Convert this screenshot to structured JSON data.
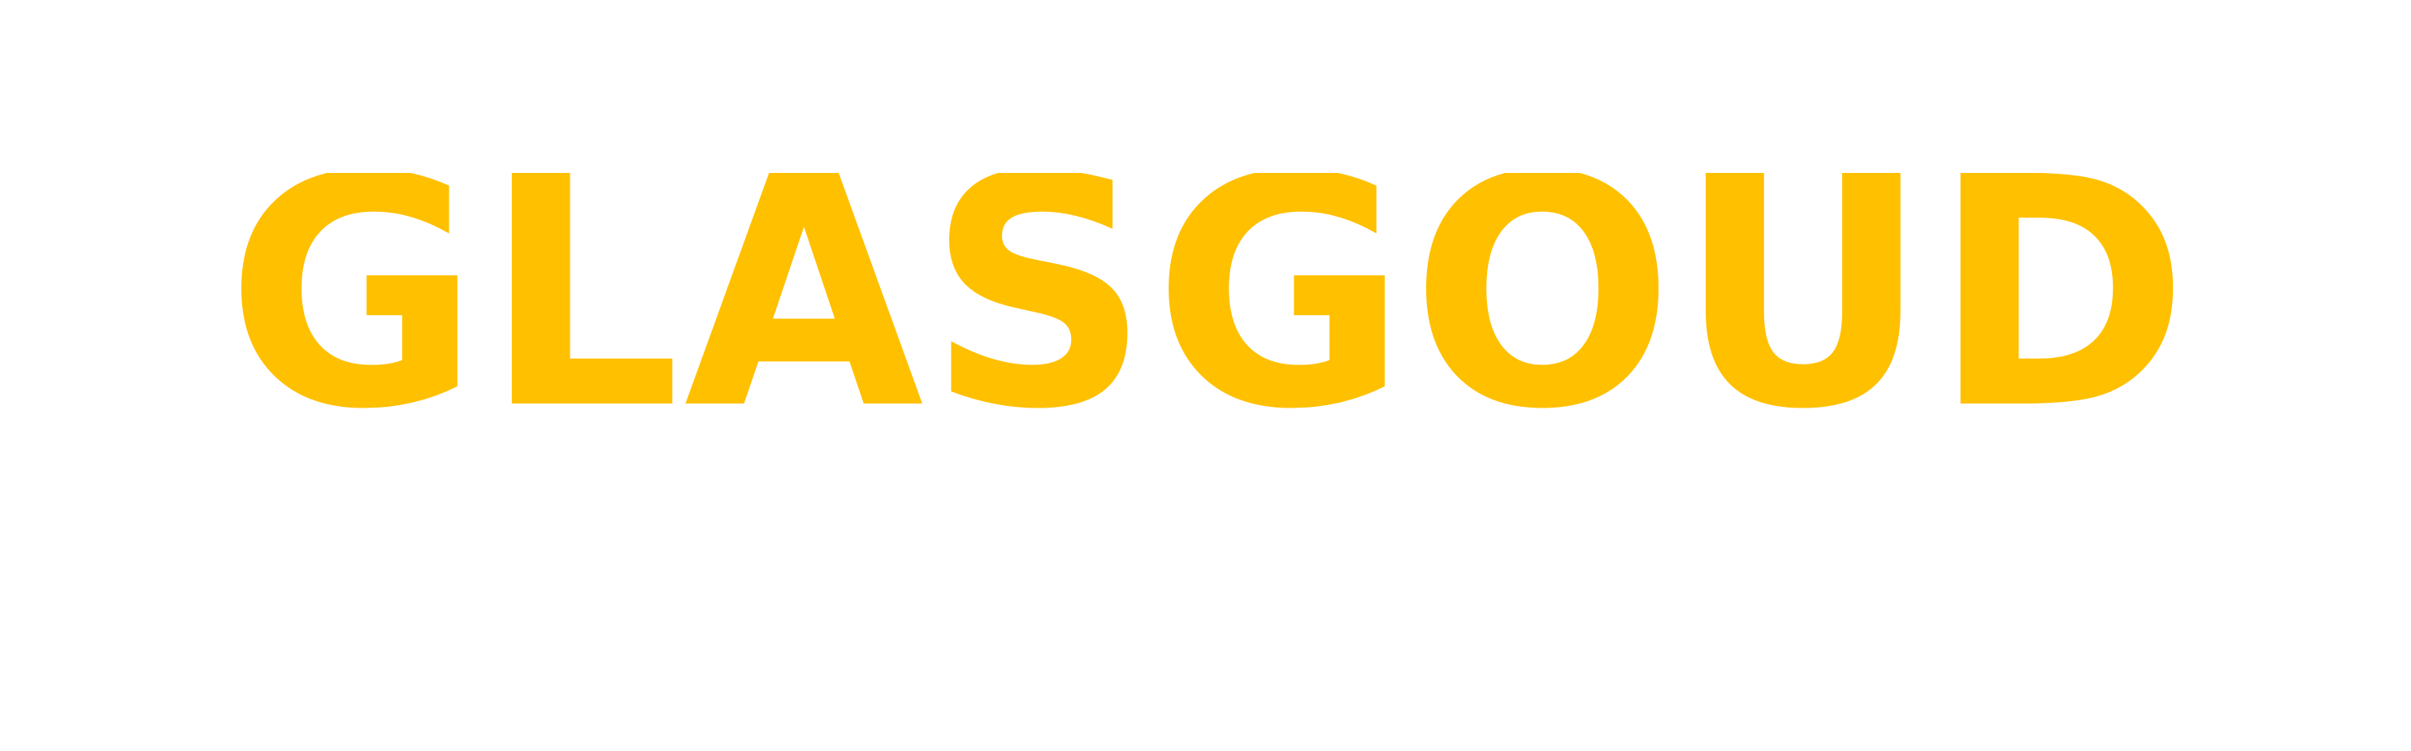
{
  "logo": {
    "text": "GLASGOUD",
    "color": "#FFC000",
    "background": "#FFFFFF"
  }
}
